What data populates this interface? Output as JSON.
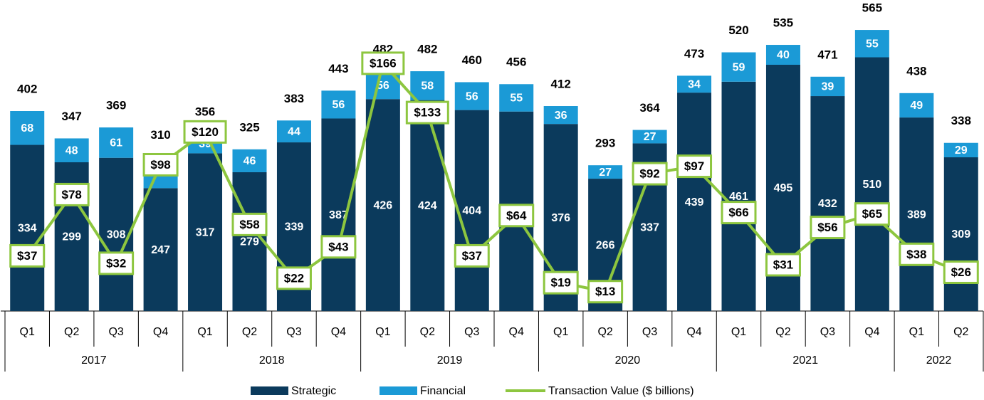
{
  "chart_data": {
    "type": "bar",
    "stacked": true,
    "groups": [
      {
        "label": "2017",
        "categories": [
          "Q1",
          "Q2",
          "Q3",
          "Q4"
        ]
      },
      {
        "label": "2018",
        "categories": [
          "Q1",
          "Q2",
          "Q3",
          "Q4"
        ]
      },
      {
        "label": "2019",
        "categories": [
          "Q1",
          "Q2",
          "Q3",
          "Q4"
        ]
      },
      {
        "label": "2020",
        "categories": [
          "Q1",
          "Q2",
          "Q3",
          "Q4"
        ]
      },
      {
        "label": "2021",
        "categories": [
          "Q1",
          "Q2",
          "Q3",
          "Q4"
        ]
      },
      {
        "label": "2022",
        "categories": [
          "Q1",
          "Q2"
        ]
      }
    ],
    "series": [
      {
        "name": "Strategic",
        "color": "#0b3a5c",
        "values": [
          334,
          299,
          308,
          247,
          317,
          279,
          339,
          387,
          426,
          424,
          404,
          401,
          376,
          266,
          337,
          439,
          461,
          495,
          432,
          510,
          389,
          309
        ]
      },
      {
        "name": "Financial",
        "color": "#1b9ad6",
        "values": [
          68,
          48,
          61,
          63,
          39,
          46,
          44,
          56,
          56,
          58,
          56,
          55,
          36,
          27,
          27,
          34,
          59,
          40,
          39,
          55,
          49,
          29
        ]
      },
      {
        "name": "Transaction Value ($ billions)",
        "color": "#8dc63f",
        "type": "line",
        "axis": "y2",
        "values": [
          37,
          78,
          32,
          98,
          120,
          58,
          22,
          43,
          166,
          133,
          37,
          64,
          19,
          13,
          92,
          97,
          66,
          31,
          56,
          65,
          38,
          26
        ],
        "value_labels": [
          "$37",
          "$78",
          "$32",
          "$98",
          "$120",
          "$58",
          "$22",
          "$43",
          "$166",
          "$133",
          "$37",
          "$64",
          "$19",
          "$13",
          "$92",
          "$97",
          "$66",
          "$31",
          "$56",
          "$65",
          "$38",
          "$26"
        ]
      }
    ],
    "totals": [
      402,
      347,
      369,
      310,
      356,
      325,
      383,
      443,
      482,
      482,
      460,
      456,
      412,
      293,
      364,
      473,
      520,
      535,
      471,
      565,
      438,
      338
    ],
    "ylim": [
      0,
      600
    ],
    "y2lim": [
      0,
      200
    ],
    "legend": "bottom"
  }
}
